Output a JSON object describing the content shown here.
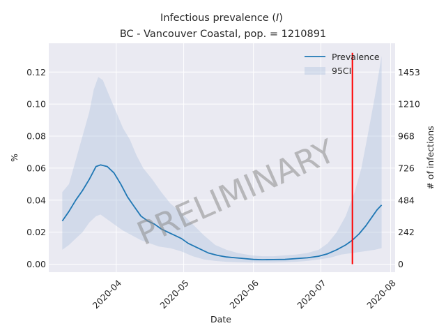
{
  "chart_data": {
    "type": "line",
    "title_prefix": "Infectious prevalence (",
    "title_symbol": "I",
    "title_suffix": ")",
    "subtitle": "BC - Vancouver Coastal, pop. = 1210891",
    "xlabel": "Date",
    "ylabel": "%",
    "ylabel_right": "# of infections",
    "watermark": "PRELIMINARY",
    "x_start": "2020-03-08",
    "x_end": "2020-07-28",
    "xlim": [
      "2020-03-02",
      "2020-08-03"
    ],
    "ylim": [
      -0.005,
      0.138
    ],
    "x_ticks": [
      "2020-04",
      "2020-05",
      "2020-06",
      "2020-07",
      "2020-08"
    ],
    "y_ticks": [
      0.0,
      0.02,
      0.04,
      0.06,
      0.08,
      0.1,
      0.12
    ],
    "y_tick_labels": [
      "0.00",
      "0.02",
      "0.04",
      "0.06",
      "0.08",
      "0.10",
      "0.12"
    ],
    "y_right_ticks": [
      0,
      242,
      484,
      726,
      968,
      1210,
      1453
    ],
    "y_right_tick_labels": [
      "0",
      "242",
      "484",
      "726",
      "968",
      "1210",
      "1453"
    ],
    "grid": true,
    "legend_position": "top-right",
    "series": [
      {
        "name": "Prevalence",
        "color": "#1f77b4",
        "points": [
          [
            "2020-03-08",
            0.027
          ],
          [
            "2020-03-11",
            0.033
          ],
          [
            "2020-03-14",
            0.04
          ],
          [
            "2020-03-17",
            0.046
          ],
          [
            "2020-03-20",
            0.053
          ],
          [
            "2020-03-23",
            0.061
          ],
          [
            "2020-03-25",
            0.062
          ],
          [
            "2020-03-28",
            0.061
          ],
          [
            "2020-03-31",
            0.057
          ],
          [
            "2020-04-03",
            0.05
          ],
          [
            "2020-04-06",
            0.042
          ],
          [
            "2020-04-09",
            0.036
          ],
          [
            "2020-04-12",
            0.03
          ],
          [
            "2020-04-15",
            0.027
          ],
          [
            "2020-04-18",
            0.025
          ],
          [
            "2020-04-21",
            0.022
          ],
          [
            "2020-04-24",
            0.02
          ],
          [
            "2020-04-27",
            0.018
          ],
          [
            "2020-04-30",
            0.016
          ],
          [
            "2020-05-03",
            0.013
          ],
          [
            "2020-05-06",
            0.011
          ],
          [
            "2020-05-09",
            0.009
          ],
          [
            "2020-05-12",
            0.007
          ],
          [
            "2020-05-16",
            0.0055
          ],
          [
            "2020-05-20",
            0.0045
          ],
          [
            "2020-05-24",
            0.004
          ],
          [
            "2020-05-28",
            0.0035
          ],
          [
            "2020-06-01",
            0.003
          ],
          [
            "2020-06-05",
            0.0028
          ],
          [
            "2020-06-10",
            0.0029
          ],
          [
            "2020-06-15",
            0.003
          ],
          [
            "2020-06-20",
            0.0035
          ],
          [
            "2020-06-25",
            0.004
          ],
          [
            "2020-06-30",
            0.005
          ],
          [
            "2020-07-04",
            0.0065
          ],
          [
            "2020-07-08",
            0.009
          ],
          [
            "2020-07-12",
            0.012
          ],
          [
            "2020-07-15",
            0.015
          ],
          [
            "2020-07-18",
            0.019
          ],
          [
            "2020-07-21",
            0.024
          ],
          [
            "2020-07-24",
            0.03
          ],
          [
            "2020-07-26",
            0.034
          ],
          [
            "2020-07-28",
            0.037
          ]
        ]
      },
      {
        "name": "95CI",
        "color": "#b0c4de",
        "upper": [
          [
            "2020-03-08",
            0.045
          ],
          [
            "2020-03-11",
            0.05
          ],
          [
            "2020-03-14",
            0.065
          ],
          [
            "2020-03-17",
            0.08
          ],
          [
            "2020-03-20",
            0.095
          ],
          [
            "2020-03-22",
            0.109
          ],
          [
            "2020-03-24",
            0.117
          ],
          [
            "2020-03-26",
            0.115
          ],
          [
            "2020-03-29",
            0.105
          ],
          [
            "2020-04-01",
            0.095
          ],
          [
            "2020-04-04",
            0.085
          ],
          [
            "2020-04-07",
            0.078
          ],
          [
            "2020-04-10",
            0.068
          ],
          [
            "2020-04-13",
            0.06
          ],
          [
            "2020-04-17",
            0.053
          ],
          [
            "2020-04-21",
            0.045
          ],
          [
            "2020-04-25",
            0.038
          ],
          [
            "2020-04-30",
            0.032
          ],
          [
            "2020-05-05",
            0.025
          ],
          [
            "2020-05-10",
            0.018
          ],
          [
            "2020-05-15",
            0.012
          ],
          [
            "2020-05-20",
            0.009
          ],
          [
            "2020-05-25",
            0.007
          ],
          [
            "2020-05-31",
            0.0055
          ],
          [
            "2020-06-05",
            0.005
          ],
          [
            "2020-06-10",
            0.005
          ],
          [
            "2020-06-15",
            0.0055
          ],
          [
            "2020-06-20",
            0.006
          ],
          [
            "2020-06-25",
            0.007
          ],
          [
            "2020-06-30",
            0.009
          ],
          [
            "2020-07-04",
            0.013
          ],
          [
            "2020-07-08",
            0.02
          ],
          [
            "2020-07-12",
            0.03
          ],
          [
            "2020-07-16",
            0.045
          ],
          [
            "2020-07-19",
            0.06
          ],
          [
            "2020-07-22",
            0.082
          ],
          [
            "2020-07-25",
            0.105
          ],
          [
            "2020-07-28",
            0.13
          ]
        ],
        "lower": [
          [
            "2020-03-08",
            0.009
          ],
          [
            "2020-03-11",
            0.012
          ],
          [
            "2020-03-14",
            0.016
          ],
          [
            "2020-03-17",
            0.02
          ],
          [
            "2020-03-20",
            0.026
          ],
          [
            "2020-03-23",
            0.03
          ],
          [
            "2020-03-25",
            0.031
          ],
          [
            "2020-03-28",
            0.028
          ],
          [
            "2020-03-31",
            0.025
          ],
          [
            "2020-04-04",
            0.021
          ],
          [
            "2020-04-08",
            0.018
          ],
          [
            "2020-04-12",
            0.015
          ],
          [
            "2020-04-16",
            0.013
          ],
          [
            "2020-04-20",
            0.011
          ],
          [
            "2020-04-25",
            0.01
          ],
          [
            "2020-04-30",
            0.008
          ],
          [
            "2020-05-05",
            0.005
          ],
          [
            "2020-05-10",
            0.003
          ],
          [
            "2020-05-15",
            0.002
          ],
          [
            "2020-05-20",
            0.0015
          ],
          [
            "2020-05-25",
            0.0012
          ],
          [
            "2020-05-31",
            0.001
          ],
          [
            "2020-06-05",
            0.001
          ],
          [
            "2020-06-10",
            0.001
          ],
          [
            "2020-06-15",
            0.0012
          ],
          [
            "2020-06-20",
            0.0015
          ],
          [
            "2020-06-25",
            0.002
          ],
          [
            "2020-06-30",
            0.003
          ],
          [
            "2020-07-05",
            0.004
          ],
          [
            "2020-07-10",
            0.006
          ],
          [
            "2020-07-15",
            0.007
          ],
          [
            "2020-07-20",
            0.008
          ],
          [
            "2020-07-25",
            0.009
          ],
          [
            "2020-07-28",
            0.01
          ]
        ]
      }
    ],
    "vline": {
      "x": "2020-07-15",
      "color": "#ff0000",
      "y_range": [
        0.0,
        0.132
      ]
    }
  }
}
